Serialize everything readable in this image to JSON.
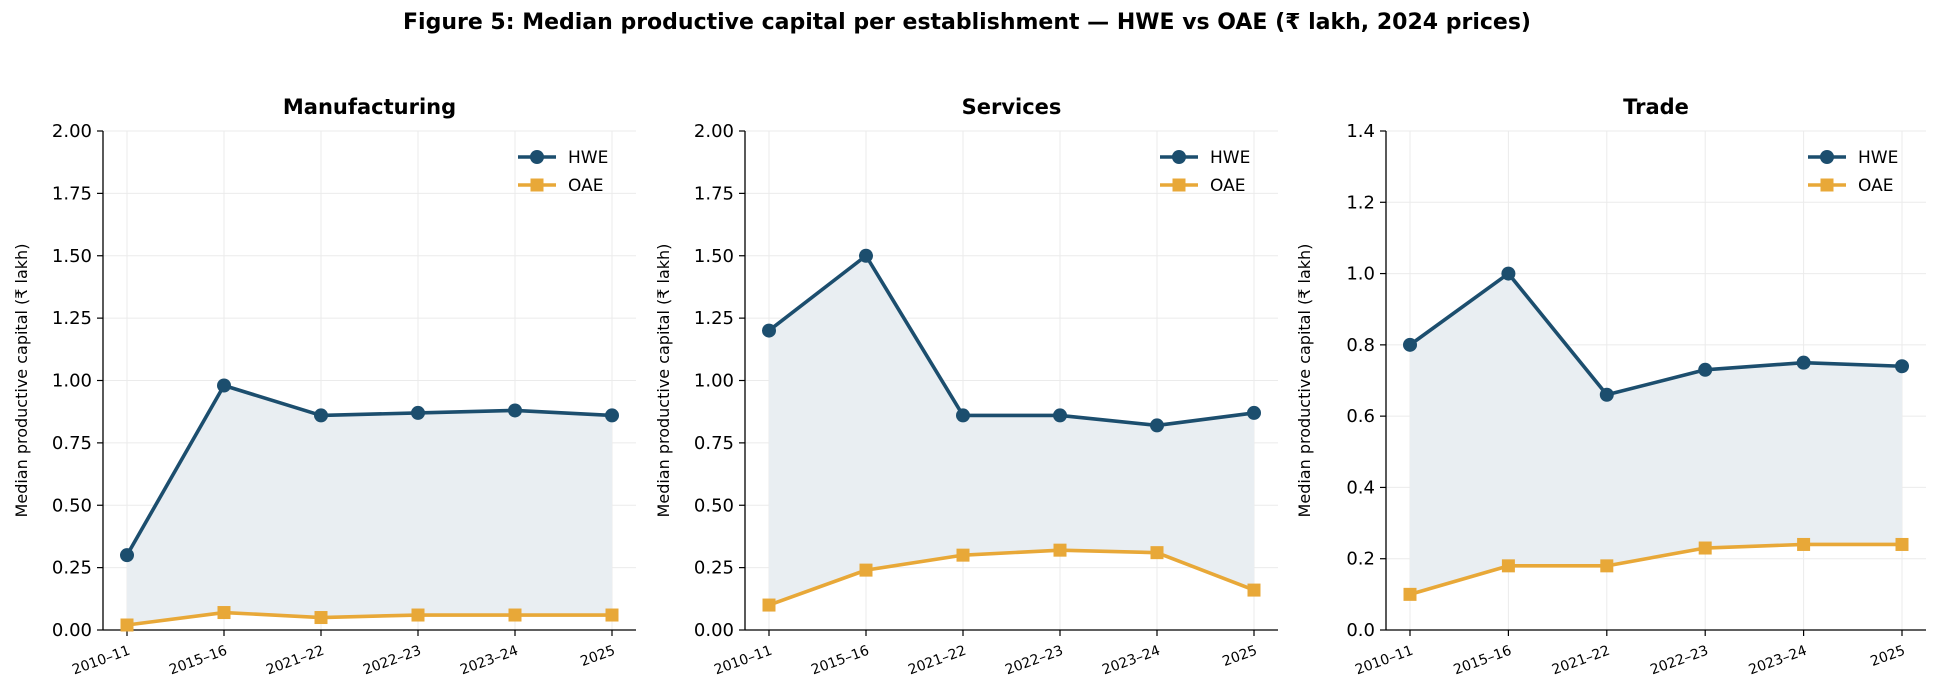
{
  "figure": {
    "title": "Figure 5: Median productive capital per establishment — HWE vs OAE (₹ lakh, 2024 prices)"
  },
  "colors": {
    "hwe": "#1c4e6e",
    "oae": "#e8a838",
    "fill": "#e9eef2",
    "grid": "#ebebeb",
    "axis": "#000000"
  },
  "chart_data": [
    {
      "type": "line",
      "title": "Manufacturing",
      "xlabel": "",
      "ylabel": "Median productive capital (₹ lakh)",
      "categories": [
        "2010–11",
        "2015–16",
        "2021–22",
        "2022–23",
        "2023–24",
        "2025"
      ],
      "ylim": [
        0,
        2.0
      ],
      "yticks": [
        "0.00",
        "0.25",
        "0.50",
        "0.75",
        "1.00",
        "1.25",
        "1.50",
        "1.75",
        "2.00"
      ],
      "grid": true,
      "legend_position": "top-right",
      "gap_shaded": true,
      "series": [
        {
          "name": "HWE",
          "marker": "circle",
          "values": [
            0.3,
            0.98,
            0.86,
            0.87,
            0.88,
            0.86
          ]
        },
        {
          "name": "OAE",
          "marker": "square",
          "values": [
            0.02,
            0.07,
            0.05,
            0.06,
            0.06,
            0.06
          ]
        }
      ]
    },
    {
      "type": "line",
      "title": "Services",
      "xlabel": "",
      "ylabel": "Median productive capital (₹ lakh)",
      "categories": [
        "2010–11",
        "2015–16",
        "2021–22",
        "2022–23",
        "2023–24",
        "2025"
      ],
      "ylim": [
        0,
        2.0
      ],
      "yticks": [
        "0.00",
        "0.25",
        "0.50",
        "0.75",
        "1.00",
        "1.25",
        "1.50",
        "1.75",
        "2.00"
      ],
      "grid": true,
      "legend_position": "top-right",
      "gap_shaded": true,
      "series": [
        {
          "name": "HWE",
          "marker": "circle",
          "values": [
            1.2,
            1.5,
            0.86,
            0.86,
            0.82,
            0.87
          ]
        },
        {
          "name": "OAE",
          "marker": "square",
          "values": [
            0.1,
            0.24,
            0.3,
            0.32,
            0.31,
            0.16
          ]
        }
      ]
    },
    {
      "type": "line",
      "title": "Trade",
      "xlabel": "",
      "ylabel": "Median productive capital (₹ lakh)",
      "categories": [
        "2010–11",
        "2015–16",
        "2021–22",
        "2022–23",
        "2023–24",
        "2025"
      ],
      "ylim": [
        0,
        1.4
      ],
      "yticks": [
        "0.0",
        "0.2",
        "0.4",
        "0.6",
        "0.8",
        "1.0",
        "1.2",
        "1.4"
      ],
      "grid": true,
      "legend_position": "top-right",
      "gap_shaded": true,
      "series": [
        {
          "name": "HWE",
          "marker": "circle",
          "values": [
            0.8,
            1.0,
            0.66,
            0.73,
            0.75,
            0.74
          ]
        },
        {
          "name": "OAE",
          "marker": "square",
          "values": [
            0.1,
            0.18,
            0.18,
            0.23,
            0.24,
            0.24
          ]
        }
      ]
    }
  ]
}
